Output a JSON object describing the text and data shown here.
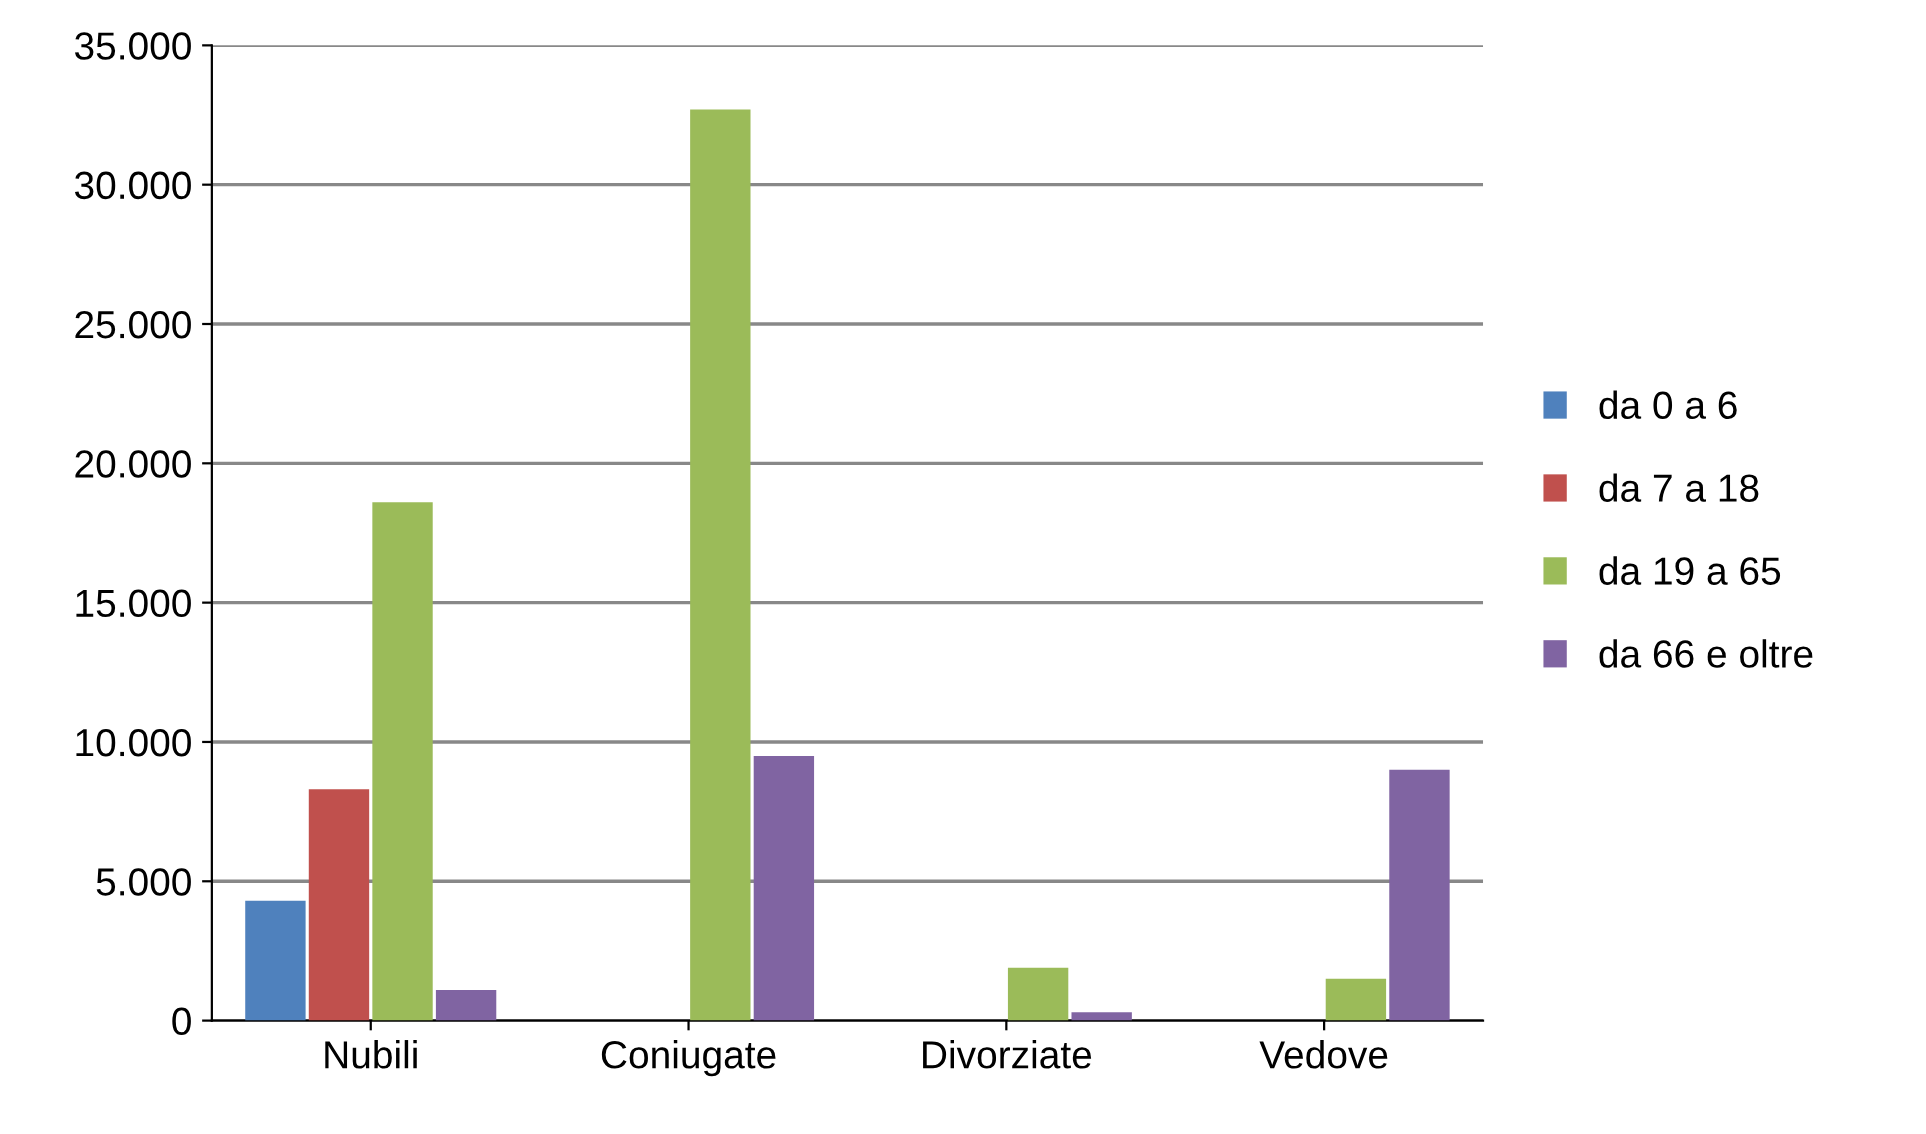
{
  "chart_data": {
    "type": "bar",
    "categories": [
      "Nubili",
      "Coniugate",
      "Divorziate",
      "Vedove"
    ],
    "series": [
      {
        "name": "da 0 a 6",
        "color": "#4f81bd",
        "values": [
          4300,
          0,
          0,
          0
        ]
      },
      {
        "name": "da 7 a 18",
        "color": "#c0504d",
        "values": [
          8300,
          0,
          0,
          0
        ]
      },
      {
        "name": "da 19 a 65",
        "color": "#9bbb59",
        "values": [
          18600,
          32700,
          1900,
          1500
        ]
      },
      {
        "name": "da 66 e oltre",
        "color": "#8064a2",
        "values": [
          1100,
          9500,
          300,
          9000
        ]
      }
    ],
    "ylim": [
      0,
      35000
    ],
    "yticks": [
      0,
      {
        "value": 5000,
        "label": "5.000"
      },
      {
        "value": 10000,
        "label": "10.000"
      },
      {
        "value": 15000,
        "label": "15.000"
      },
      {
        "value": 20000,
        "label": "20.000"
      },
      {
        "value": 25000,
        "label": "25.000"
      },
      {
        "value": 30000,
        "label": "30.000"
      },
      {
        "value": 35000,
        "label": "35.000"
      }
    ],
    "grid": "y",
    "legend": "right"
  }
}
